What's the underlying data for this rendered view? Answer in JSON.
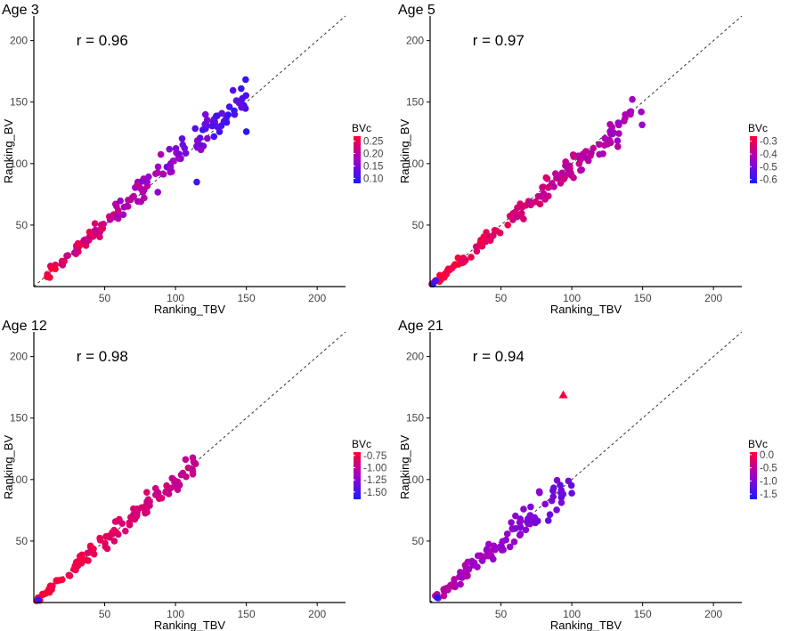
{
  "chart_data": [
    {
      "type": "scatter",
      "title": "Age 3",
      "annotation": "r = 0.96",
      "xlabel": "Ranking_TBV",
      "ylabel": "Ranking_BV",
      "xlim": [
        0,
        220
      ],
      "ylim": [
        0,
        220
      ],
      "xticks": [
        50,
        100,
        150,
        200
      ],
      "yticks": [
        50,
        100,
        150,
        200
      ],
      "reference_line": "y = x (dashed)",
      "color_scale": {
        "title": "BVc",
        "min": 0.08,
        "max": 0.27,
        "low": "#1a1aff",
        "mid": "#a000c8",
        "high": "#ff0033",
        "ticks": [
          "0.25",
          "0.20",
          "0.15",
          "0.10"
        ],
        "tick_values": [
          0.25,
          0.2,
          0.15,
          0.1
        ]
      },
      "seed": 11,
      "n": 150,
      "slope": 1.03,
      "noise": 12,
      "cmin": 0.1,
      "cmax": 0.27,
      "outliers": [
        {
          "x": 150,
          "y": 126,
          "c": 0.09,
          "shape": "circle"
        },
        {
          "x": 115,
          "y": 85,
          "c": 0.11,
          "shape": "circle"
        }
      ]
    },
    {
      "type": "scatter",
      "title": "Age 5",
      "annotation": "r = 0.97",
      "xlabel": "Ranking_TBV",
      "ylabel": "Ranking_BV",
      "xlim": [
        0,
        220
      ],
      "ylim": [
        0,
        220
      ],
      "xticks": [
        50,
        100,
        150,
        200
      ],
      "yticks": [
        50,
        100,
        150,
        200
      ],
      "reference_line": "y = x (dashed)",
      "color_scale": {
        "title": "BVc",
        "min": -0.63,
        "max": -0.26,
        "low": "#1a1aff",
        "mid": "#a000c8",
        "high": "#ff0033",
        "ticks": [
          "-0.3",
          "-0.4",
          "-0.5",
          "-0.6"
        ],
        "tick_values": [
          -0.3,
          -0.4,
          -0.5,
          -0.6
        ]
      },
      "seed": 23,
      "n": 150,
      "slope": 0.97,
      "noise": 11,
      "cmin": -0.45,
      "cmax": -0.26,
      "outliers": [
        {
          "x": 2,
          "y": 2,
          "c": -0.6,
          "shape": "circle"
        },
        {
          "x": 4,
          "y": 5,
          "c": -0.55,
          "shape": "circle"
        }
      ]
    },
    {
      "type": "scatter",
      "title": "Age 12",
      "annotation": "r = 0.98",
      "xlabel": "Ranking_TBV",
      "ylabel": "Ranking_BV",
      "xlim": [
        0,
        220
      ],
      "ylim": [
        0,
        220
      ],
      "xticks": [
        50,
        100,
        150,
        200
      ],
      "yticks": [
        50,
        100,
        150,
        200
      ],
      "reference_line": "y = x (dashed)",
      "color_scale": {
        "title": "BVc",
        "min": -1.65,
        "max": -0.68,
        "low": "#1a1aff",
        "mid": "#a000c8",
        "high": "#ff0033",
        "ticks": [
          "-0.75",
          "-1.00",
          "-1.25",
          "-1.50"
        ],
        "tick_values": [
          -0.75,
          -1.0,
          -1.25,
          -1.5
        ]
      },
      "seed": 37,
      "n": 120,
      "slope": 1.0,
      "noise": 8,
      "xmax": 115,
      "cmin": -1.0,
      "cmax": -0.68,
      "outliers": [
        {
          "x": 3,
          "y": 2,
          "c": -1.5,
          "shape": "circle"
        }
      ]
    },
    {
      "type": "scatter",
      "title": "Age 21",
      "annotation": "r = 0.94",
      "xlabel": "Ranking_TBV",
      "ylabel": "Ranking_BV",
      "xlim": [
        0,
        220
      ],
      "ylim": [
        0,
        220
      ],
      "xticks": [
        50,
        100,
        150,
        200
      ],
      "yticks": [
        50,
        100,
        150,
        200
      ],
      "reference_line": "y = x (dashed)",
      "color_scale": {
        "title": "BVc",
        "min": -1.7,
        "max": 0.1,
        "low": "#1a1aff",
        "mid": "#a000c8",
        "high": "#ff0033",
        "ticks": [
          "0.0",
          "-0.5",
          "-1.0",
          "-1.5"
        ],
        "tick_values": [
          0.0,
          -0.5,
          -1.0,
          -1.5
        ]
      },
      "seed": 53,
      "n": 110,
      "slope": 0.98,
      "noise": 12,
      "xmax": 100,
      "cmin": -1.2,
      "cmax": -0.5,
      "outliers": [
        {
          "x": 94,
          "y": 169,
          "c": 0.05,
          "shape": "triangle"
        },
        {
          "x": 5,
          "y": 4,
          "c": -1.6,
          "shape": "circle"
        }
      ]
    }
  ]
}
